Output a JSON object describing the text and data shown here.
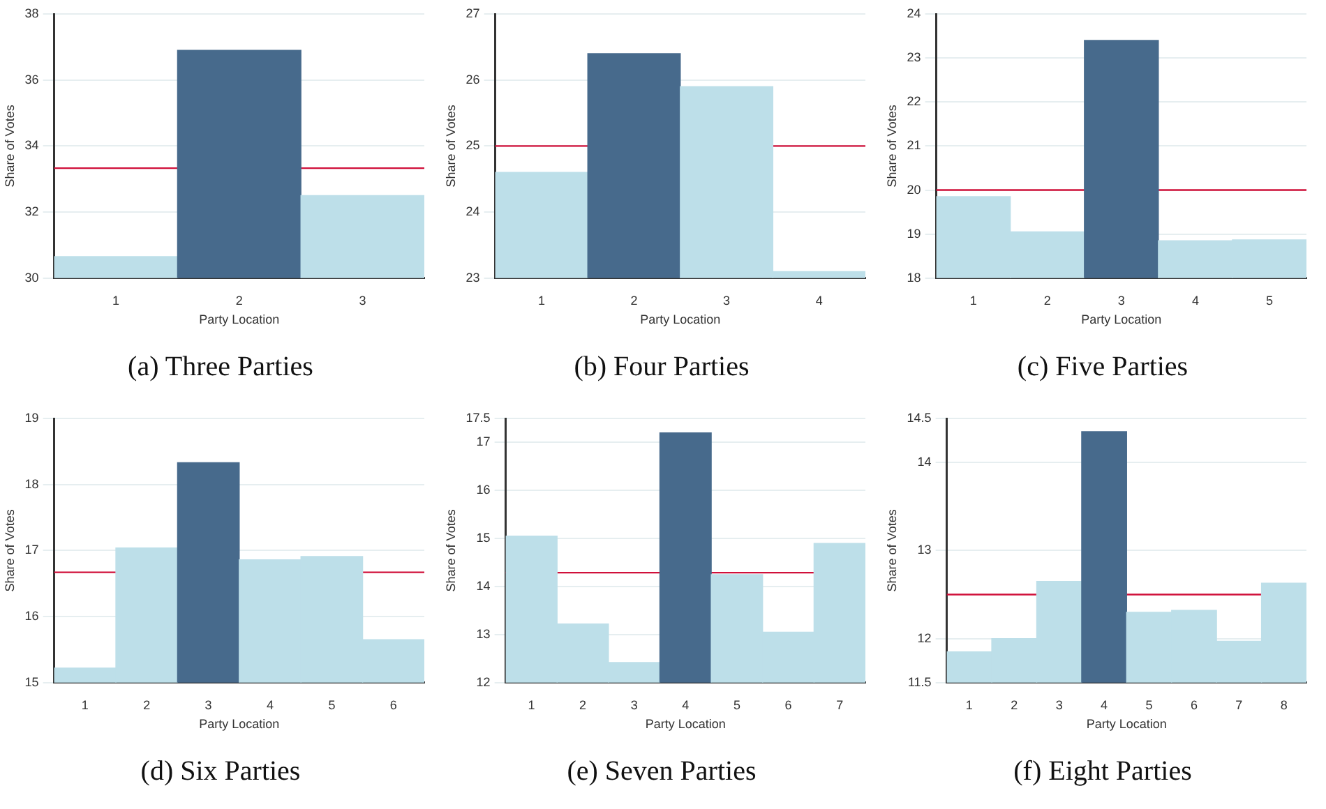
{
  "chart_data": [
    {
      "type": "bar",
      "title": "(a)  Three Parties",
      "xlabel": "Party Location",
      "ylabel": "Share of Votes",
      "categories": [
        "1",
        "2",
        "3"
      ],
      "values": [
        30.65,
        36.9,
        32.5
      ],
      "colors": [
        "#bddfe9",
        "#476a8c",
        "#bddfe9"
      ],
      "ylim": [
        30,
        38
      ],
      "yticks": [
        30,
        32,
        34,
        36,
        38
      ],
      "grid": "y",
      "ref_lines": [
        {
          "axis": "y",
          "value": 33.33,
          "color": "#d0103a"
        }
      ]
    },
    {
      "type": "bar",
      "title": "(b)  Four Parties",
      "xlabel": "Party Location",
      "ylabel": "Share of Votes",
      "categories": [
        "1",
        "2",
        "3",
        "4"
      ],
      "values": [
        24.6,
        26.4,
        25.9,
        23.1
      ],
      "colors": [
        "#bddfe9",
        "#476a8c",
        "#bddfe9",
        "#bddfe9"
      ],
      "ylim": [
        23,
        27
      ],
      "yticks": [
        23,
        24,
        25,
        26,
        27
      ],
      "grid": "y",
      "ref_lines": [
        {
          "axis": "y",
          "value": 25,
          "color": "#d0103a"
        }
      ]
    },
    {
      "type": "bar",
      "title": "(c)  Five Parties",
      "xlabel": "Party Location",
      "ylabel": "Share of Votes",
      "categories": [
        "1",
        "2",
        "3",
        "4",
        "5"
      ],
      "values": [
        19.85,
        19.05,
        23.4,
        18.85,
        18.87
      ],
      "colors": [
        "#bddfe9",
        "#bddfe9",
        "#476a8c",
        "#bddfe9",
        "#bddfe9"
      ],
      "ylim": [
        18,
        24
      ],
      "yticks": [
        18,
        19,
        20,
        21,
        22,
        23,
        24
      ],
      "grid": "y",
      "ref_lines": [
        {
          "axis": "y",
          "value": 20,
          "color": "#d0103a"
        }
      ]
    },
    {
      "type": "bar",
      "title": "(d)  Six Parties",
      "xlabel": "Party Location",
      "ylabel": "Share of Votes",
      "categories": [
        "1",
        "2",
        "3",
        "4",
        "5",
        "6"
      ],
      "values": [
        15.22,
        17.04,
        18.33,
        16.86,
        16.91,
        15.65
      ],
      "colors": [
        "#bddfe9",
        "#bddfe9",
        "#476a8c",
        "#bddfe9",
        "#bddfe9",
        "#bddfe9"
      ],
      "ylim": [
        15,
        19
      ],
      "yticks": [
        15,
        16,
        17,
        18,
        19
      ],
      "grid": "y",
      "ref_lines": [
        {
          "axis": "y",
          "value": 16.67,
          "color": "#d0103a"
        }
      ]
    },
    {
      "type": "bar",
      "title": "(e)  Seven Parties",
      "xlabel": "Party Location",
      "ylabel": "Share of Votes",
      "categories": [
        "1",
        "2",
        "3",
        "4",
        "5",
        "6",
        "7"
      ],
      "values": [
        15.05,
        13.22,
        12.42,
        17.2,
        14.25,
        13.05,
        14.9
      ],
      "colors": [
        "#bddfe9",
        "#bddfe9",
        "#bddfe9",
        "#476a8c",
        "#bddfe9",
        "#bddfe9",
        "#bddfe9"
      ],
      "ylim": [
        12,
        17.5
      ],
      "yticks": [
        12,
        13,
        14,
        15,
        16,
        17,
        17.5
      ],
      "grid": "y",
      "ref_lines": [
        {
          "axis": "y",
          "value": 14.29,
          "color": "#d0103a"
        }
      ]
    },
    {
      "type": "bar",
      "title": "(f)  Eight Parties",
      "xlabel": "Party Location",
      "ylabel": "Share of Votes",
      "categories": [
        "1",
        "2",
        "3",
        "4",
        "5",
        "6",
        "7",
        "8"
      ],
      "values": [
        11.85,
        12.0,
        12.65,
        14.35,
        12.3,
        12.32,
        11.97,
        12.63
      ],
      "colors": [
        "#bddfe9",
        "#bddfe9",
        "#bddfe9",
        "#476a8c",
        "#bddfe9",
        "#bddfe9",
        "#bddfe9",
        "#bddfe9"
      ],
      "ylim": [
        11.5,
        14.5
      ],
      "yticks": [
        11.5,
        12,
        13,
        14,
        14.5
      ],
      "grid": "y",
      "ref_lines": [
        {
          "axis": "y",
          "value": 12.5,
          "color": "#d0103a"
        }
      ]
    }
  ]
}
